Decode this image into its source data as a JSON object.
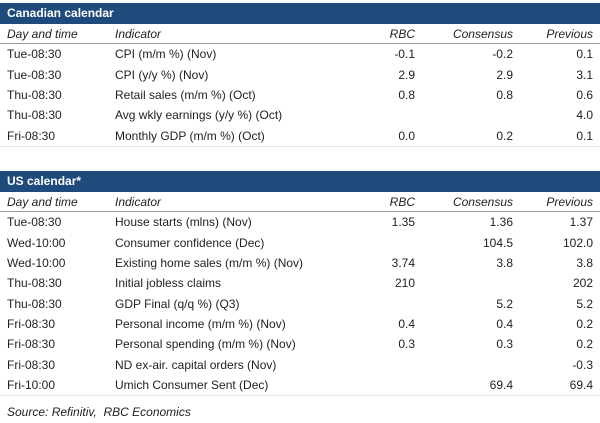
{
  "colors": {
    "section_bar": "#1f4a7c",
    "header_rule": "#9a9a9a",
    "text": "#1f1f1f"
  },
  "columns": {
    "day": "Day and time",
    "indicator": "Indicator",
    "rbc": "RBC",
    "consensus": "Consensus",
    "previous": "Previous"
  },
  "sections": [
    {
      "title": "Canadian calendar",
      "rows": [
        [
          "Tue-08:30",
          "CPI (m/m %) (Nov)",
          "-0.1",
          "-0.2",
          "0.1"
        ],
        [
          "Tue-08:30",
          "CPI (y/y %) (Nov)",
          "2.9",
          "2.9",
          "3.1"
        ],
        [
          "Thu-08:30",
          "Retail sales (m/m %) (Oct)",
          "0.8",
          "0.8",
          "0.6"
        ],
        [
          "Thu-08:30",
          "Avg wkly earnings (y/y %) (Oct)",
          "",
          "",
          "4.0"
        ],
        [
          "Fri-08:30",
          "Monthly GDP (m/m %) (Oct)",
          "0.0",
          "0.2",
          "0.1"
        ]
      ]
    },
    {
      "title": "US calendar*",
      "rows": [
        [
          "Tue-08:30",
          "House starts (mlns) (Nov)",
          "1.35",
          "1.36",
          "1.37"
        ],
        [
          "Wed-10:00",
          "Consumer confidence (Dec)",
          "",
          "104.5",
          "102.0"
        ],
        [
          "Wed-10:00",
          "Existing home sales (m/m %) (Nov)",
          "3.74",
          "3.8",
          "3.8"
        ],
        [
          "Thu-08:30",
          "Initial jobless claims",
          "210",
          "",
          "202"
        ],
        [
          "Thu-08:30",
          "GDP Final (q/q %) (Q3)",
          "",
          "5.2",
          "5.2"
        ],
        [
          "Fri-08:30",
          "Personal income (m/m %) (Nov)",
          "0.4",
          "0.4",
          "0.2"
        ],
        [
          "Fri-08:30",
          "Personal spending (m/m %) (Nov)",
          "0.3",
          "0.3",
          "0.2"
        ],
        [
          "Fri-08:30",
          "ND ex-air. capital orders (Nov)",
          "",
          "",
          "-0.3"
        ],
        [
          "Fri-10:00",
          "Umich Consumer Sent (Dec)",
          "",
          "69.4",
          "69.4"
        ]
      ]
    }
  ],
  "source_note": "Source: Refinitiv,  RBC Economics"
}
